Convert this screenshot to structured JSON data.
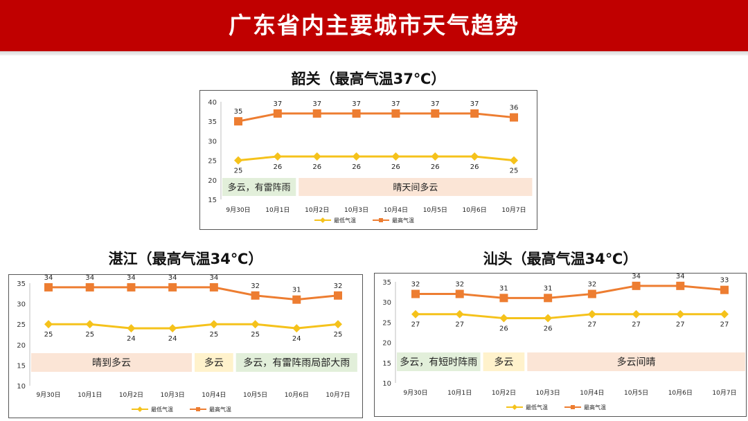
{
  "header": {
    "title": "广东省内主要城市天气趋势"
  },
  "legend": {
    "low_label": "最低气温",
    "high_label": "最高气温"
  },
  "colors": {
    "banner": "#c00000",
    "high": "#ed7d31",
    "low": "#f5c21b",
    "weather_blue": "#e2efda",
    "weather_orange": "#fbe5d6",
    "weather_yellow": "#fff2cc"
  },
  "chart_data": [
    {
      "type": "line",
      "title": "韶关（最高气温37℃）",
      "categories": [
        "9月30日",
        "10月1日",
        "10月2日",
        "10月3日",
        "10月4日",
        "10月5日",
        "10月6日",
        "10月7日"
      ],
      "series": [
        {
          "name": "最低气温",
          "values": [
            25,
            26,
            26,
            26,
            26,
            26,
            26,
            25
          ]
        },
        {
          "name": "最高气温",
          "values": [
            35,
            37,
            37,
            37,
            37,
            37,
            37,
            36
          ]
        }
      ],
      "ylim": [
        15,
        40
      ],
      "yticks": [
        15,
        20,
        25,
        30,
        35,
        40
      ],
      "legend_position": "bottom",
      "weather": [
        {
          "text": "多云，有雷阵雨",
          "from": 0,
          "to": 1,
          "color": "blue"
        },
        {
          "text": "晴天间多云",
          "from": 2,
          "to": 7,
          "color": "orange"
        }
      ]
    },
    {
      "type": "line",
      "title": "湛江（最高气温34℃）",
      "categories": [
        "9月30日",
        "10月1日",
        "10月2日",
        "10月3日",
        "10月4日",
        "10月5日",
        "10月6日",
        "10月7日"
      ],
      "series": [
        {
          "name": "最低气温",
          "values": [
            25,
            25,
            24,
            24,
            25,
            25,
            24,
            25
          ]
        },
        {
          "name": "最高气温",
          "values": [
            34,
            34,
            34,
            34,
            34,
            32,
            31,
            32
          ]
        }
      ],
      "ylim": [
        10,
        35
      ],
      "yticks": [
        10,
        15,
        20,
        25,
        30,
        35
      ],
      "legend_position": "bottom",
      "weather": [
        {
          "text": "晴到多云",
          "from": 0,
          "to": 3,
          "color": "orange"
        },
        {
          "text": "多云",
          "from": 4,
          "to": 4,
          "color": "yellow"
        },
        {
          "text": "多云，有雷阵雨局部大雨",
          "from": 5,
          "to": 7,
          "color": "blue"
        }
      ]
    },
    {
      "type": "line",
      "title": "汕头（最高气温34℃）",
      "categories": [
        "9月30日",
        "10月1日",
        "10月2日",
        "10月3日",
        "10月4日",
        "10月5日",
        "10月6日",
        "10月7日"
      ],
      "series": [
        {
          "name": "最低气温",
          "values": [
            27,
            27,
            26,
            26,
            27,
            27,
            27,
            27
          ]
        },
        {
          "name": "最高气温",
          "values": [
            32,
            32,
            31,
            31,
            32,
            34,
            34,
            33
          ]
        }
      ],
      "ylim": [
        10,
        35
      ],
      "yticks": [
        10,
        15,
        20,
        25,
        30,
        35
      ],
      "legend_position": "bottom",
      "weather": [
        {
          "text": "多云，有短时阵雨",
          "from": 0,
          "to": 1,
          "color": "blue"
        },
        {
          "text": "多云",
          "from": 2,
          "to": 2,
          "color": "yellow"
        },
        {
          "text": "多云间晴",
          "from": 3,
          "to": 7,
          "color": "orange"
        }
      ]
    }
  ]
}
